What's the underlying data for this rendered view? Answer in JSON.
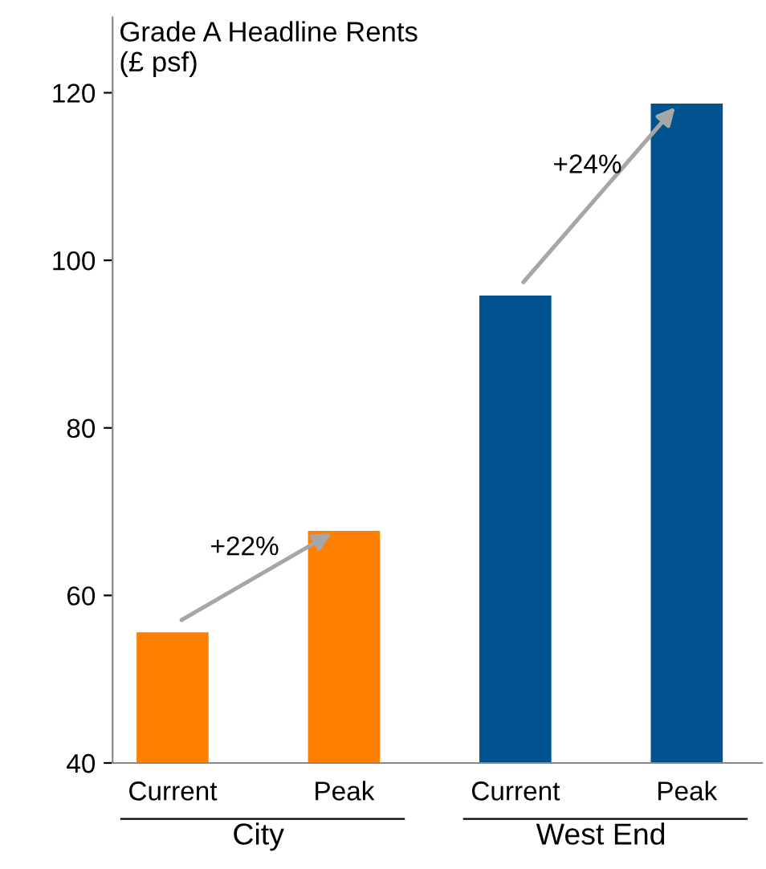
{
  "chart_data": {
    "type": "bar",
    "title": "Grade A Headline Rents\n(£ psf)",
    "categories": [
      "Current",
      "Peak",
      "Current",
      "Peak"
    ],
    "values": [
      55.6,
      67.7,
      95.8,
      118.7
    ],
    "colors": [
      "#ff7f00",
      "#ff7f00",
      "#00538f",
      "#00538f"
    ],
    "ylim": [
      40,
      129
    ],
    "yticks": [
      40,
      60,
      80,
      100,
      120
    ],
    "grid": false,
    "legend": false,
    "annotations": [
      "+22%",
      "+24%",
      "City",
      "West End"
    ]
  }
}
